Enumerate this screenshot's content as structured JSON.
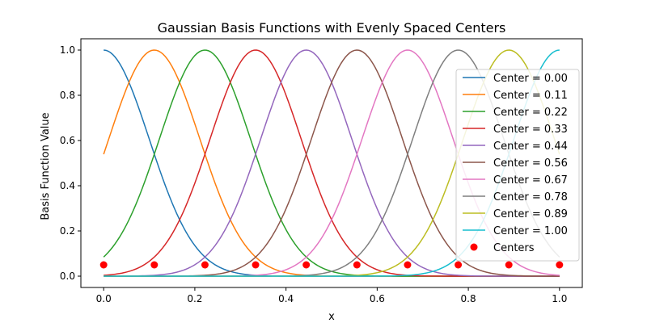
{
  "chart_data": {
    "type": "line",
    "title": "Gaussian Basis Functions with Evenly Spaced Centers",
    "xlabel": "x",
    "ylabel": "Basis Function Value",
    "xlim": [
      -0.05,
      1.05
    ],
    "ylim": [
      -0.05,
      1.05
    ],
    "x_ticks": [
      "0.0",
      "0.2",
      "0.4",
      "0.6",
      "0.8",
      "1.0"
    ],
    "y_ticks": [
      "0.0",
      "0.2",
      "0.4",
      "0.6",
      "0.8",
      "1.0"
    ],
    "grid": false,
    "legend_position": "right",
    "basis_function": "Gaussian",
    "width": 0.1,
    "centers": [
      0.0,
      0.1111,
      0.2222,
      0.3333,
      0.4444,
      0.5556,
      0.6667,
      0.7778,
      0.8889,
      1.0
    ],
    "center_marker_y": 0.05,
    "series": [
      {
        "name": "Center = 0.00",
        "center": 0.0,
        "color": "#1f77b4"
      },
      {
        "name": "Center = 0.11",
        "center": 0.1111,
        "color": "#ff7f0e"
      },
      {
        "name": "Center = 0.22",
        "center": 0.2222,
        "color": "#2ca02c"
      },
      {
        "name": "Center = 0.33",
        "center": 0.3333,
        "color": "#d62728"
      },
      {
        "name": "Center = 0.44",
        "center": 0.4444,
        "color": "#9467bd"
      },
      {
        "name": "Center = 0.56",
        "center": 0.5556,
        "color": "#8c564b"
      },
      {
        "name": "Center = 0.67",
        "center": 0.6667,
        "color": "#e377c2"
      },
      {
        "name": "Center = 0.78",
        "center": 0.7778,
        "color": "#7f7f7f"
      },
      {
        "name": "Center = 0.89",
        "center": 0.8889,
        "color": "#bcbd22"
      },
      {
        "name": "Center = 1.00",
        "center": 1.0,
        "color": "#17becf"
      }
    ],
    "centers_series": {
      "name": "Centers",
      "color": "#ff0000"
    }
  }
}
